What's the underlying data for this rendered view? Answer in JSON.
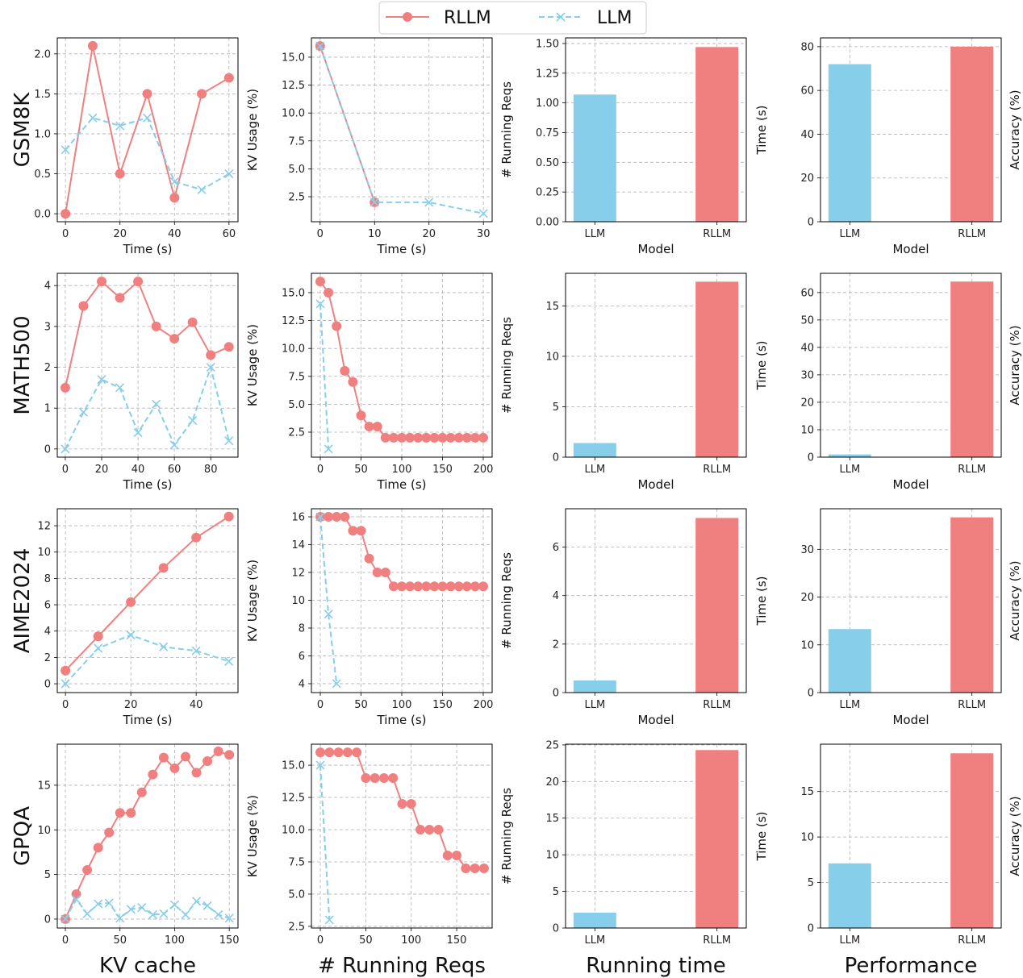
{
  "colors": {
    "RLLM": "#F08080",
    "LLM": "#87CEEB",
    "grid": "#b0b0b0"
  },
  "legend": {
    "entries": [
      {
        "name": "RLLM",
        "style": "solid-circle"
      },
      {
        "name": "LLM",
        "style": "dashed-x"
      }
    ],
    "placement": "top-center"
  },
  "row_labels": [
    "GSM8K",
    "MATH500",
    "AIME2024",
    "GPQA"
  ],
  "column_titles": [
    "KV cache",
    "# Running Reqs",
    "Running time",
    "Performance"
  ],
  "chart_data": [
    {
      "type": "line",
      "xlabel": "Time (s)",
      "ylabel": "",
      "xlim": [
        -3,
        63.3
      ],
      "ylim": [
        -0.1,
        2.2
      ],
      "xticks": [
        "0",
        "20",
        "40",
        "60"
      ],
      "yticks": [
        "0.0",
        "0.5",
        "1.0",
        "1.5",
        "2.0"
      ],
      "series": [
        {
          "name": "RLLM",
          "x": [
            0,
            10,
            20,
            30,
            40,
            50,
            60
          ],
          "y": [
            0,
            2.1,
            0.5,
            1.5,
            0.2,
            1.5,
            1.7
          ]
        },
        {
          "name": "LLM",
          "x": [
            0,
            10,
            20,
            30,
            40,
            50,
            60
          ],
          "y": [
            0.8,
            1.2,
            1.1,
            1.2,
            0.4,
            0.3,
            0.5
          ]
        }
      ]
    },
    {
      "type": "line",
      "xlabel": "Time (s)",
      "ylabel": "KV Usage (%)",
      "xlim": [
        -1.6,
        31.6
      ],
      "ylim": [
        0.26,
        16.73
      ],
      "xticks": [
        "0",
        "10",
        "20",
        "30"
      ],
      "yticks": [
        "2.5",
        "5.0",
        "7.5",
        "10.0",
        "12.5",
        "15.0"
      ],
      "series": [
        {
          "name": "RLLM",
          "x": [
            0,
            10
          ],
          "y": [
            16,
            2
          ]
        },
        {
          "name": "LLM",
          "x": [
            0,
            10,
            20,
            30
          ],
          "y": [
            16,
            2,
            2,
            1
          ]
        }
      ]
    },
    {
      "type": "bar",
      "xlabel": "Model",
      "ylabel": "# Running Reqs",
      "ylim": [
        0,
        1.547
      ],
      "yticks": [
        "0.00",
        "0.25",
        "0.50",
        "0.75",
        "1.00",
        "1.25",
        "1.50"
      ],
      "categories": [
        "LLM",
        "RLLM"
      ],
      "values": [
        1.07,
        1.47
      ]
    },
    {
      "type": "bar",
      "xlabel": "Model",
      "ylabel": "Time (s)",
      "ylabel_right": "Accuracy (%)",
      "ylim": [
        0,
        84
      ],
      "yticks": [
        "0",
        "20",
        "40",
        "60",
        "80"
      ],
      "categories": [
        "LLM",
        "RLLM"
      ],
      "values": [
        72,
        80
      ]
    },
    {
      "type": "line",
      "xlabel": "Time (s)",
      "ylabel": "",
      "xlim": [
        -4.4,
        95
      ],
      "ylim": [
        -0.2,
        4.3
      ],
      "xticks": [
        "0",
        "20",
        "40",
        "60",
        "80"
      ],
      "yticks": [
        "0",
        "1",
        "2",
        "3",
        "4"
      ],
      "series": [
        {
          "name": "RLLM",
          "x": [
            0,
            10,
            20,
            30,
            40,
            50,
            60,
            70,
            80,
            90
          ],
          "y": [
            1.5,
            3.5,
            4.1,
            3.7,
            4.1,
            3.0,
            2.7,
            3.1,
            2.3,
            2.5
          ]
        },
        {
          "name": "LLM",
          "x": [
            0,
            10,
            20,
            30,
            40,
            50,
            60,
            70,
            80,
            90
          ],
          "y": [
            0,
            0.9,
            1.7,
            1.5,
            0.4,
            1.1,
            0.1,
            0.7,
            2.0,
            0.2
          ]
        }
      ]
    },
    {
      "type": "line",
      "xlabel": "Time (s)",
      "ylabel": "KV Usage (%)",
      "xlim": [
        -10.9,
        210.9
      ],
      "ylim": [
        0.26,
        16.73
      ],
      "xticks": [
        "0",
        "50",
        "100",
        "150",
        "200"
      ],
      "yticks": [
        "2.5",
        "5.0",
        "7.5",
        "10.0",
        "12.5",
        "15.0"
      ],
      "series": [
        {
          "name": "RLLM",
          "x": [
            0,
            10,
            20,
            30,
            40,
            50,
            60,
            70,
            80,
            90,
            100,
            110,
            120,
            130,
            140,
            150,
            160,
            170,
            180,
            190,
            200
          ],
          "y": [
            16,
            15,
            12,
            8,
            7,
            4,
            3,
            3,
            2,
            2,
            2,
            2,
            2,
            2,
            2,
            2,
            2,
            2,
            2,
            2,
            2
          ]
        },
        {
          "name": "LLM",
          "x": [
            0,
            10
          ],
          "y": [
            14,
            1
          ]
        }
      ]
    },
    {
      "type": "bar",
      "xlabel": "Model",
      "ylabel": "# Running Reqs",
      "ylim": [
        0,
        18.23
      ],
      "yticks": [
        "0",
        "5",
        "10",
        "15"
      ],
      "categories": [
        "LLM",
        "RLLM"
      ],
      "values": [
        1.4,
        17.4
      ]
    },
    {
      "type": "bar",
      "xlabel": "Model",
      "ylabel": "Time (s)",
      "ylabel_right": "Accuracy (%)",
      "ylim": [
        0,
        67
      ],
      "yticks": [
        "0",
        "10",
        "20",
        "30",
        "40",
        "50",
        "60"
      ],
      "categories": [
        "LLM",
        "RLLM"
      ],
      "values": [
        1,
        64
      ]
    },
    {
      "type": "line",
      "xlabel": "Time (s)",
      "ylabel": "",
      "xlim": [
        -2.5,
        52.8
      ],
      "ylim": [
        -0.67,
        13.29
      ],
      "xticks": [
        "0",
        "20",
        "40"
      ],
      "yticks": [
        "0",
        "2",
        "4",
        "6",
        "8",
        "10",
        "12"
      ],
      "series": [
        {
          "name": "RLLM",
          "x": [
            0,
            10,
            20,
            30,
            40,
            50
          ],
          "y": [
            1,
            3.6,
            6.2,
            8.8,
            11.1,
            12.7
          ]
        },
        {
          "name": "LLM",
          "x": [
            0,
            10,
            20,
            30,
            40,
            50
          ],
          "y": [
            0,
            2.7,
            3.7,
            2.8,
            2.5,
            1.7
          ]
        }
      ]
    },
    {
      "type": "line",
      "xlabel": "Time (s)",
      "ylabel": "KV Usage (%)",
      "xlim": [
        -10.9,
        210.9
      ],
      "ylim": [
        3.36,
        16.58
      ],
      "xticks": [
        "0",
        "50",
        "100",
        "150",
        "200"
      ],
      "yticks": [
        "4",
        "6",
        "8",
        "10",
        "12",
        "14",
        "16"
      ],
      "series": [
        {
          "name": "RLLM",
          "x": [
            0,
            10,
            20,
            30,
            40,
            50,
            60,
            70,
            80,
            90,
            100,
            110,
            120,
            130,
            140,
            150,
            160,
            170,
            180,
            190,
            200
          ],
          "y": [
            16,
            16,
            16,
            16,
            15,
            15,
            13,
            12,
            12,
            11,
            11,
            11,
            11,
            11,
            11,
            11,
            11,
            11,
            11,
            11,
            11
          ]
        },
        {
          "name": "LLM",
          "x": [
            0,
            10,
            20
          ],
          "y": [
            16,
            9,
            4
          ]
        }
      ]
    },
    {
      "type": "bar",
      "xlabel": "Model",
      "ylabel": "# Running Reqs",
      "ylim": [
        0,
        7.58
      ],
      "yticks": [
        "0",
        "2",
        "4",
        "6"
      ],
      "categories": [
        "LLM",
        "RLLM"
      ],
      "values": [
        0.5,
        7.2
      ]
    },
    {
      "type": "bar",
      "xlabel": "Model",
      "ylabel": "Time (s)",
      "ylabel_right": "Accuracy (%)",
      "ylim": [
        0,
        38.5
      ],
      "yticks": [
        "0",
        "10",
        "20",
        "30"
      ],
      "categories": [
        "LLM",
        "RLLM"
      ],
      "values": [
        13.3,
        36.7
      ]
    },
    {
      "type": "line",
      "xlabel": "",
      "ylabel": "",
      "xlim": [
        -7.4,
        158
      ],
      "ylim": [
        -1.0,
        19.6
      ],
      "xticks": [
        "0",
        "50",
        "100",
        "150"
      ],
      "yticks": [
        "0",
        "5",
        "10",
        "15"
      ],
      "series": [
        {
          "name": "RLLM",
          "x": [
            0,
            10,
            20,
            30,
            40,
            50,
            60,
            70,
            80,
            90,
            100,
            110,
            120,
            130,
            140,
            150
          ],
          "y": [
            0,
            2.8,
            5.5,
            8,
            9.7,
            11.9,
            11.9,
            14.2,
            16.2,
            18.1,
            16.9,
            18.2,
            16.4,
            17.7,
            18.8,
            18.4
          ]
        },
        {
          "name": "LLM",
          "x": [
            0,
            10,
            20,
            30,
            40,
            50,
            60,
            70,
            80,
            90,
            100,
            110,
            120,
            130,
            140,
            150
          ],
          "y": [
            0,
            2.2,
            0.6,
            1.7,
            1.8,
            0.1,
            1.1,
            1.3,
            0.5,
            0.6,
            1.6,
            0.5,
            2.0,
            1.5,
            0.5,
            0.1
          ]
        }
      ]
    },
    {
      "type": "line",
      "xlabel": "",
      "ylabel": "KV Usage (%)",
      "xlim": [
        -9.8,
        189
      ],
      "ylim": [
        2.37,
        16.63
      ],
      "xticks": [
        "0",
        "50",
        "100",
        "150"
      ],
      "yticks": [
        "2.5",
        "5.0",
        "7.5",
        "10.0",
        "12.5",
        "15.0"
      ],
      "series": [
        {
          "name": "RLLM",
          "x": [
            0,
            10,
            20,
            30,
            40,
            50,
            60,
            70,
            80,
            90,
            100,
            110,
            120,
            130,
            140,
            150,
            160,
            170,
            180
          ],
          "y": [
            16,
            16,
            16,
            16,
            16,
            14,
            14,
            14,
            14,
            12,
            12,
            10,
            10,
            10,
            8,
            8,
            7,
            7,
            7
          ]
        },
        {
          "name": "LLM",
          "x": [
            0,
            10
          ],
          "y": [
            15,
            3
          ]
        }
      ]
    },
    {
      "type": "bar",
      "xlabel": "",
      "ylabel": "# Running Reqs",
      "ylim": [
        0,
        25.1
      ],
      "yticks": [
        "0",
        "5",
        "10",
        "15",
        "20",
        "25"
      ],
      "categories": [
        "LLM",
        "RLLM"
      ],
      "values": [
        2.1,
        24.3
      ]
    },
    {
      "type": "bar",
      "xlabel": "",
      "ylabel": "Time (s)",
      "ylabel_right": "Accuracy (%)",
      "ylim": [
        0,
        20.2
      ],
      "yticks": [
        "0",
        "5",
        "10",
        "15"
      ],
      "categories": [
        "LLM",
        "RLLM"
      ],
      "values": [
        7.1,
        19.2
      ]
    }
  ]
}
